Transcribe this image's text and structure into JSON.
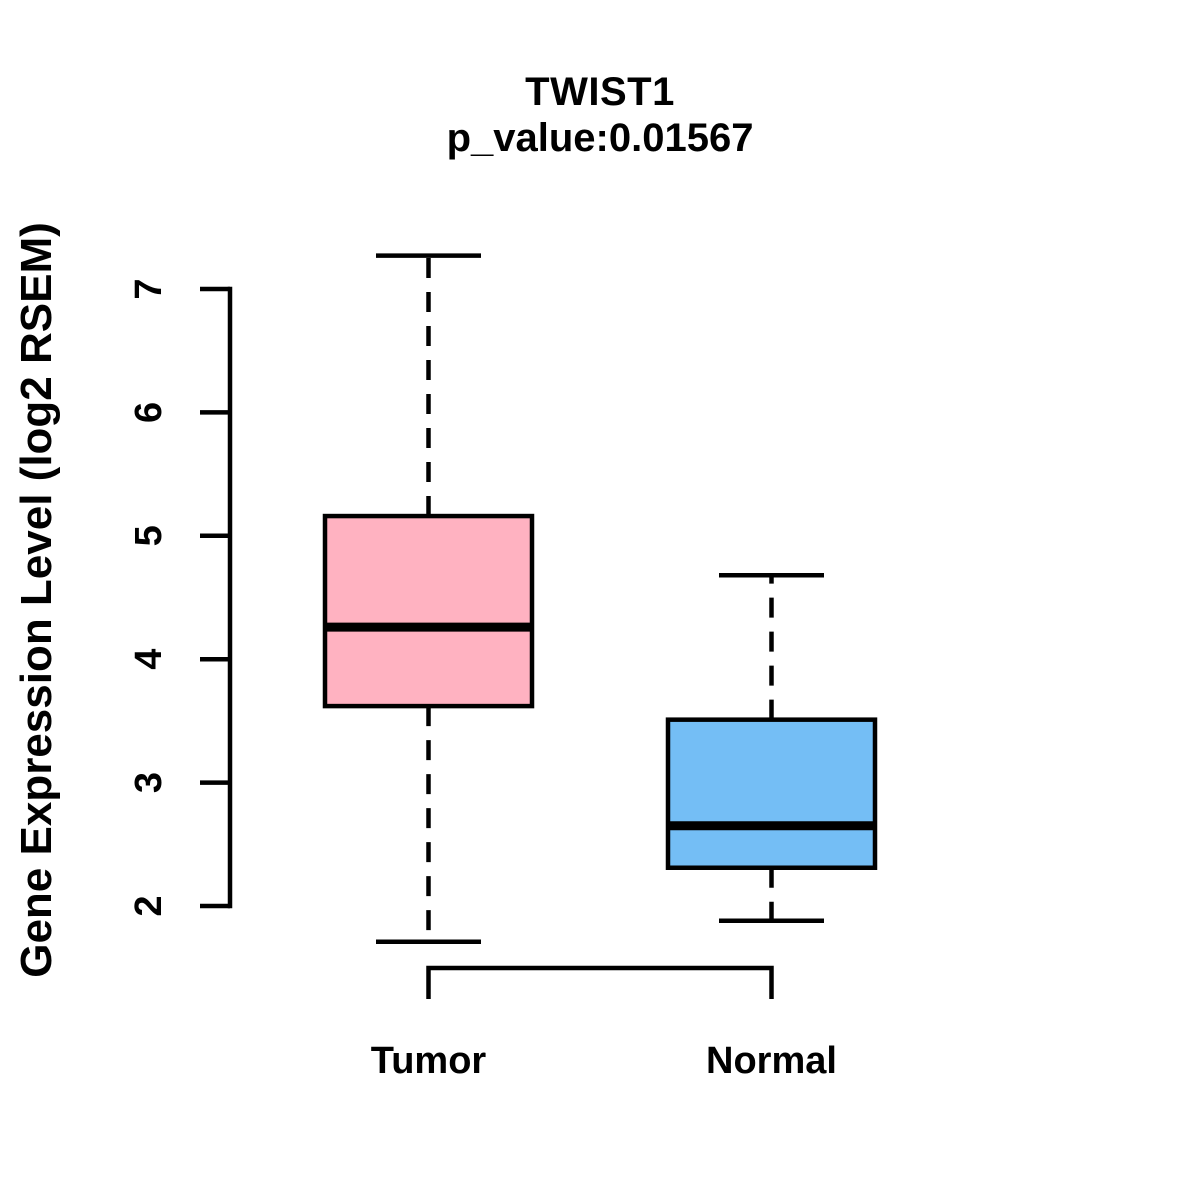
{
  "title": "TWIST1",
  "subtitle": "p_value:0.01567",
  "chart_data": {
    "type": "boxplot",
    "title": "TWIST1",
    "subtitle": "p_value:0.01567",
    "ylabel": "Gene Expression Level (log2 RSEM)",
    "xlabel": "",
    "ylim": [
      2,
      7
    ],
    "yticks": [
      2,
      3,
      4,
      5,
      6,
      7
    ],
    "grid": false,
    "legend": false,
    "categories": [
      "Tumor",
      "Normal"
    ],
    "series": [
      {
        "name": "Tumor",
        "label": "Tumor",
        "box_fill": "#FFB2C1",
        "lower_whisker": 1.71,
        "q1": 3.62,
        "median": 4.26,
        "q3": 5.16,
        "upper_whisker": 7.27
      },
      {
        "name": "Normal",
        "label": "Normal",
        "box_fill": "#74BEF5",
        "lower_whisker": 1.88,
        "q1": 2.31,
        "median": 2.65,
        "q3": 3.51,
        "upper_whisker": 4.68
      }
    ],
    "comparison_bracket": {
      "from": "Tumor",
      "to": "Normal",
      "label": ""
    }
  },
  "colors": {
    "background": "#FFFFFF",
    "line": "#000000",
    "tumor_fill": "#FFB2C1",
    "normal_fill": "#74BEF5"
  }
}
